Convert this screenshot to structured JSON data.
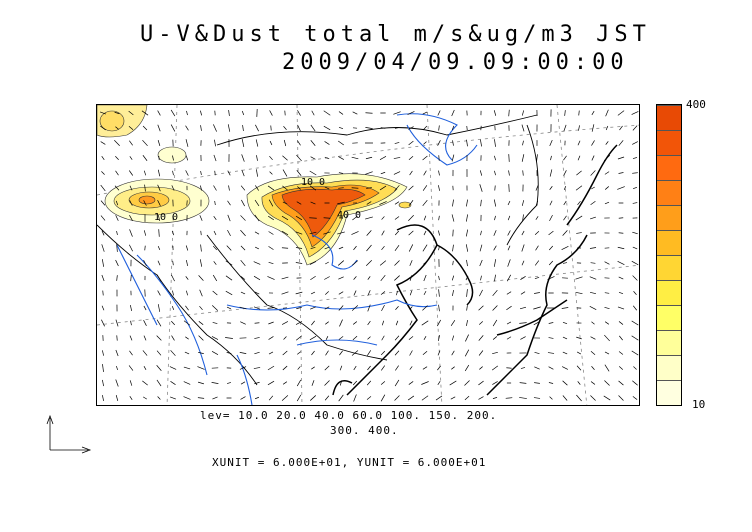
{
  "title": {
    "line1": "U-V&Dust total m/s&ug/m3 JST",
    "line2": "2009/04/09.09:00:00"
  },
  "colorbar": {
    "max_label": "400",
    "min_label": "10",
    "colors": [
      "#ffffe0",
      "#ffffc8",
      "#ffff9a",
      "#ffff66",
      "#ffee44",
      "#ffd633",
      "#ffbb22",
      "#ff9e1a",
      "#ff8015",
      "#ff6a10",
      "#f25508",
      "#e84a05"
    ]
  },
  "contour_levels": {
    "line1": "lev= 10.0 20.0 40.0 60.0 100. 150. 200.",
    "line2": "300. 400."
  },
  "units": "XUNIT = 6.000E+01, YUNIT = 6.000E+01",
  "map_labels": [
    "10 0",
    "10 0",
    "40 0"
  ],
  "colors": {
    "river": "#1f5fdc",
    "coast": "#000000",
    "grid": "#777777"
  }
}
